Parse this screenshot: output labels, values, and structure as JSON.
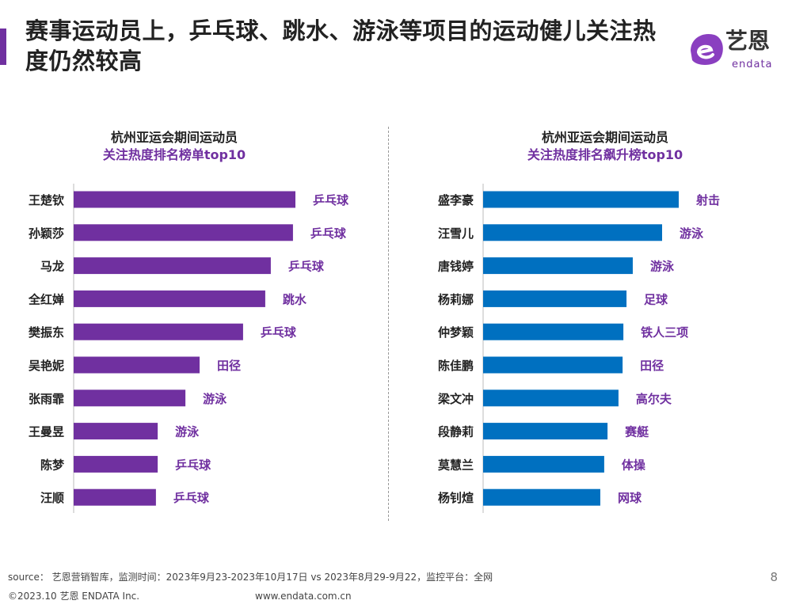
{
  "title": "赛事运动员上，乒乓球、跳水、游泳等项目的运动健儿关注热度仍然较高",
  "logo": {
    "cn": "艺恩",
    "en": "endata"
  },
  "colors": {
    "accent": "#7030a0",
    "left_bars": "#7030a0",
    "right_bars": "#0070c0",
    "labels": "#7030a0"
  },
  "chart_data": [
    {
      "type": "bar",
      "orientation": "horizontal",
      "title_line1": "杭州亚运会期间运动员",
      "title_line2": "关注热度排名榜单top10",
      "categories": [
        "王楚钦",
        "孙颖莎",
        "马龙",
        "全红婵",
        "樊振东",
        "吴艳妮",
        "张雨霏",
        "王曼昱",
        "陈梦",
        "汪顺"
      ],
      "values": [
        100,
        98.9,
        88.9,
        86.4,
        76.4,
        56.8,
        50.4,
        37.9,
        37.9,
        37.1
      ],
      "annotations": [
        "乒乓球",
        "乒乓球",
        "乒乓球",
        "跳水",
        "乒乓球",
        "田径",
        "游泳",
        "游泳",
        "乒乓球",
        "乒乓球"
      ],
      "xlim": [
        0,
        100
      ],
      "grid": false
    },
    {
      "type": "bar",
      "orientation": "horizontal",
      "title_line1": "杭州亚运会期间运动员",
      "title_line2": "关注热度排名飙升榜top10",
      "categories": [
        "盛李豪",
        "汪雪儿",
        "唐钱婷",
        "杨莉娜",
        "仲梦颖",
        "陈佳鹏",
        "梁文冲",
        "段静莉",
        "莫慧兰",
        "杨钊煊"
      ],
      "values": [
        100,
        91.5,
        76.5,
        73.3,
        71.7,
        71.3,
        69.2,
        63.6,
        61.9,
        59.9
      ],
      "annotations": [
        "射击",
        "游泳",
        "游泳",
        "足球",
        "铁人三项",
        "田径",
        "高尔夫",
        "赛艇",
        "体操",
        "网球"
      ],
      "xlim": [
        0,
        100
      ],
      "grid": false
    }
  ],
  "footer": {
    "source": "source： 艺恩营销智库，监测时间：2023年9月23-2023年10月17日 vs 2023年8月29-9月22，监控平台：全网",
    "copyright": "©2023.10  艺恩 ENDATA Inc.",
    "url": "www.endata.com.cn",
    "page": "8"
  }
}
